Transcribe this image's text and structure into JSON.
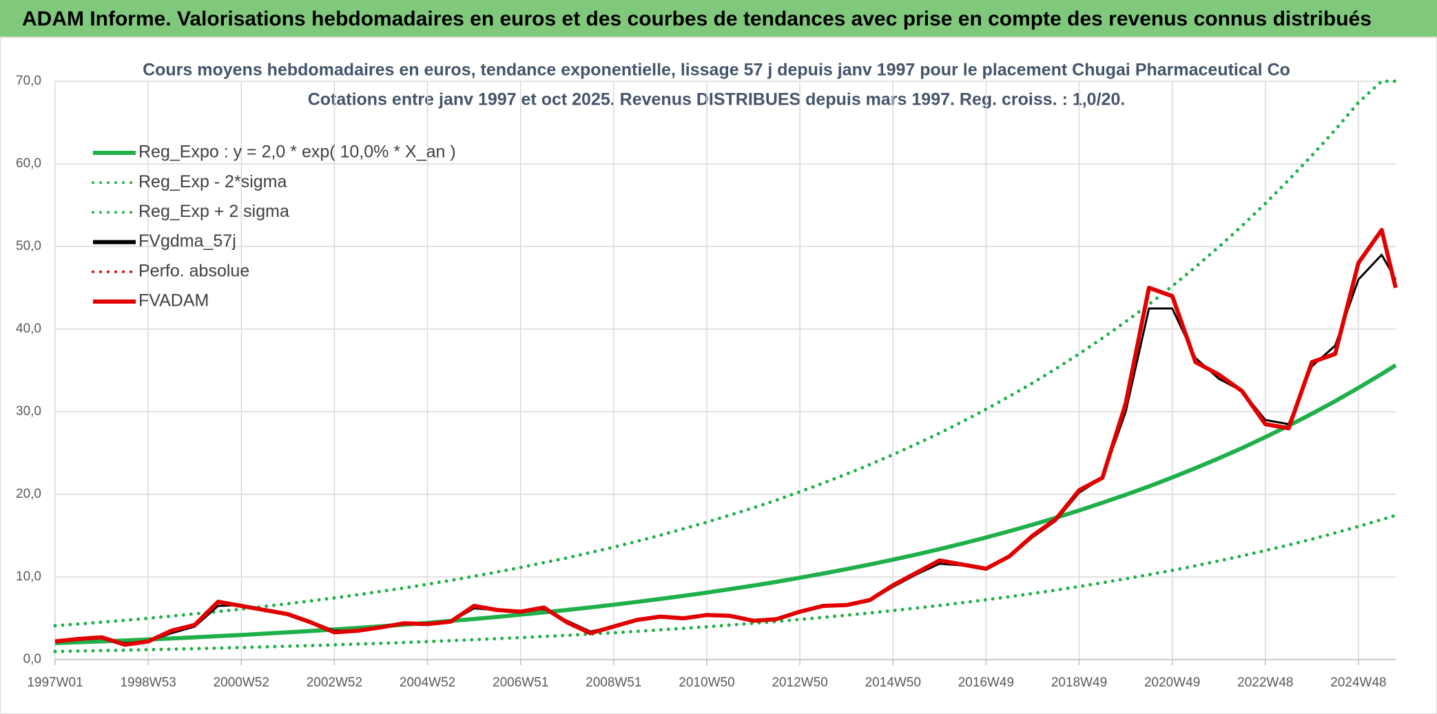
{
  "header": {
    "title": "ADAM Informe. Valorisations hebdomadaires en euros et des courbes de tendances avec prise en compte des revenus connus distribués"
  },
  "chart_data": {
    "type": "line",
    "title": "Cours moyens hebdomadaires en euros, tendance exponentielle, lissage 57 j depuis janv 1997 pour le placement Chugai Pharmaceutical Co",
    "subtitle": "Cotations entre janv 1997 et oct 2025. Revenus DISTRIBUES depuis mars 1997. Reg. croiss. : 1,0/20.",
    "x": [
      1997,
      1997.5,
      1998,
      1998.5,
      1999,
      1999.5,
      2000,
      2000.5,
      2001,
      2001.5,
      2002,
      2002.5,
      2003,
      2003.5,
      2004,
      2004.5,
      2005,
      2005.5,
      2006,
      2006.5,
      2007,
      2007.5,
      2008,
      2008.5,
      2009,
      2009.5,
      2010,
      2010.5,
      2011,
      2011.5,
      2012,
      2012.5,
      2013,
      2013.5,
      2014,
      2014.5,
      2015,
      2015.5,
      2016,
      2016.5,
      2017,
      2017.5,
      2018,
      2018.5,
      2019,
      2019.5,
      2020,
      2020.5,
      2021,
      2021.5,
      2022,
      2022.5,
      2023,
      2023.5,
      2024,
      2024.5,
      2025,
      2025.5,
      2025.8
    ],
    "xlim": [
      1997,
      2025.8
    ],
    "xticks": [
      {
        "value": 1997,
        "label": "1997W01"
      },
      {
        "value": 1999,
        "label": "1998W53"
      },
      {
        "value": 2001,
        "label": "2000W52"
      },
      {
        "value": 2003,
        "label": "2002W52"
      },
      {
        "value": 2005,
        "label": "2004W52"
      },
      {
        "value": 2007,
        "label": "2006W51"
      },
      {
        "value": 2009,
        "label": "2008W51"
      },
      {
        "value": 2011,
        "label": "2010W50"
      },
      {
        "value": 2013,
        "label": "2012W50"
      },
      {
        "value": 2015,
        "label": "2014W50"
      },
      {
        "value": 2017,
        "label": "2016W49"
      },
      {
        "value": 2019,
        "label": "2018W49"
      },
      {
        "value": 2021,
        "label": "2020W49"
      },
      {
        "value": 2023,
        "label": "2022W48"
      },
      {
        "value": 2025,
        "label": "2024W48"
      }
    ],
    "ylim": [
      0,
      70
    ],
    "yticks": [
      {
        "value": 0,
        "label": "0,0"
      },
      {
        "value": 10,
        "label": "10,0"
      },
      {
        "value": 20,
        "label": "20,0"
      },
      {
        "value": 30,
        "label": "30,0"
      },
      {
        "value": 40,
        "label": "40,0"
      },
      {
        "value": 50,
        "label": "50,0"
      },
      {
        "value": 60,
        "label": "60,0"
      },
      {
        "value": 70,
        "label": "70,0"
      }
    ],
    "grid": true,
    "legend": "upper left",
    "series": [
      {
        "name": "Reg_Expo : y = 2,0 * exp( 10,0% *  X_an )",
        "color": "#1fb04a",
        "linestyle": "solid",
        "values": [
          2.0,
          2.1,
          2.21,
          2.32,
          2.44,
          2.57,
          2.7,
          2.84,
          2.98,
          3.14,
          3.3,
          3.47,
          3.64,
          3.83,
          4.03,
          4.23,
          4.45,
          4.68,
          4.92,
          5.17,
          5.44,
          5.72,
          6.01,
          6.32,
          6.64,
          6.98,
          7.34,
          7.72,
          8.11,
          8.53,
          8.96,
          9.42,
          9.91,
          10.42,
          10.95,
          11.51,
          12.1,
          12.72,
          13.37,
          14.06,
          14.78,
          15.54,
          16.33,
          17.17,
          18.05,
          18.98,
          19.95,
          20.97,
          22.05,
          23.18,
          24.36,
          25.61,
          26.93,
          28.31,
          29.76,
          31.28,
          32.89,
          34.57,
          35.63
        ]
      },
      {
        "name": "Reg_Exp - 2*sigma",
        "color": "#1fb04a",
        "linestyle": "dotted",
        "values": [
          0.98,
          1.03,
          1.08,
          1.14,
          1.2,
          1.26,
          1.32,
          1.39,
          1.46,
          1.54,
          1.62,
          1.7,
          1.78,
          1.88,
          1.97,
          2.07,
          2.18,
          2.29,
          2.41,
          2.53,
          2.67,
          2.8,
          2.94,
          3.1,
          3.25,
          3.42,
          3.6,
          3.78,
          3.97,
          4.18,
          4.39,
          4.62,
          4.86,
          5.11,
          5.37,
          5.64,
          5.93,
          6.23,
          6.55,
          6.89,
          7.24,
          7.61,
          8.0,
          8.41,
          8.84,
          9.3,
          9.78,
          10.28,
          10.8,
          11.36,
          11.94,
          12.55,
          13.2,
          13.87,
          14.58,
          15.33,
          16.12,
          16.94,
          17.46
        ]
      },
      {
        "name": "Reg_Exp + 2 sigma",
        "color": "#1fb04a",
        "linestyle": "dotted",
        "values": [
          4.1,
          4.31,
          4.53,
          4.76,
          5.0,
          5.27,
          5.54,
          5.82,
          6.11,
          6.44,
          6.77,
          7.11,
          7.46,
          7.85,
          8.26,
          8.67,
          9.12,
          9.59,
          10.09,
          10.6,
          11.15,
          11.73,
          12.32,
          12.96,
          13.61,
          14.31,
          15.05,
          15.83,
          16.63,
          17.49,
          18.37,
          19.31,
          20.32,
          21.36,
          22.45,
          23.6,
          24.81,
          26.08,
          27.41,
          28.82,
          30.3,
          31.86,
          33.48,
          35.2,
          37.0,
          38.91,
          40.9,
          42.99,
          45.2,
          47.52,
          49.94,
          52.5,
          55.21,
          58.04,
          61.01,
          64.12,
          67.42,
          70,
          70
        ]
      },
      {
        "name": "FVgdma_57j",
        "color": "#000000",
        "linestyle": "solid",
        "values": [
          2.2,
          2.4,
          2.6,
          2.0,
          2.2,
          3.2,
          4.0,
          6.5,
          6.6,
          6.0,
          5.5,
          4.6,
          3.5,
          3.5,
          3.9,
          4.3,
          4.3,
          4.6,
          6.2,
          6.0,
          5.9,
          6.1,
          4.7,
          3.4,
          4.0,
          4.8,
          5.1,
          5.0,
          5.3,
          5.2,
          4.8,
          4.9,
          5.7,
          6.4,
          6.6,
          7.1,
          8.8,
          10.3,
          11.6,
          11.4,
          11.0,
          12.4,
          14.8,
          16.8,
          20.2,
          22.0,
          30.0,
          42.5,
          42.5,
          36.5,
          34.0,
          32.5,
          29.0,
          28.5,
          35.5,
          38.0,
          46.0,
          49.0,
          46.0
        ]
      },
      {
        "name": "Perfo. absolue",
        "color": "#e00000",
        "linestyle": "dotted",
        "values": [
          null,
          null,
          null,
          null,
          null,
          null,
          null,
          null,
          null,
          null,
          null,
          null,
          null,
          null,
          null,
          null,
          null,
          null,
          null,
          null,
          null,
          null,
          null,
          null,
          null,
          null,
          null,
          null,
          null,
          null,
          null,
          null,
          null,
          null,
          null,
          null,
          null,
          null,
          null,
          null,
          null,
          null,
          null,
          null,
          null,
          null,
          null,
          null,
          null,
          null,
          null,
          null,
          null,
          null,
          null,
          null,
          null,
          null,
          null
        ]
      },
      {
        "name": "FVADAM",
        "color": "#e00000",
        "linestyle": "solid",
        "values": [
          2.2,
          2.5,
          2.7,
          1.8,
          2.2,
          3.5,
          4.2,
          7.0,
          6.5,
          6.0,
          5.5,
          4.5,
          3.3,
          3.5,
          3.9,
          4.4,
          4.3,
          4.6,
          6.5,
          6.0,
          5.8,
          6.3,
          4.5,
          3.2,
          4.0,
          4.8,
          5.2,
          5.0,
          5.4,
          5.3,
          4.7,
          4.9,
          5.8,
          6.5,
          6.6,
          7.2,
          9.0,
          10.5,
          12.0,
          11.5,
          11.0,
          12.5,
          15.0,
          17.0,
          20.5,
          22.0,
          31.0,
          45.0,
          44.0,
          36.0,
          34.5,
          32.5,
          28.5,
          28.0,
          36.0,
          37.0,
          48.0,
          52.0,
          45.0
        ]
      }
    ]
  }
}
